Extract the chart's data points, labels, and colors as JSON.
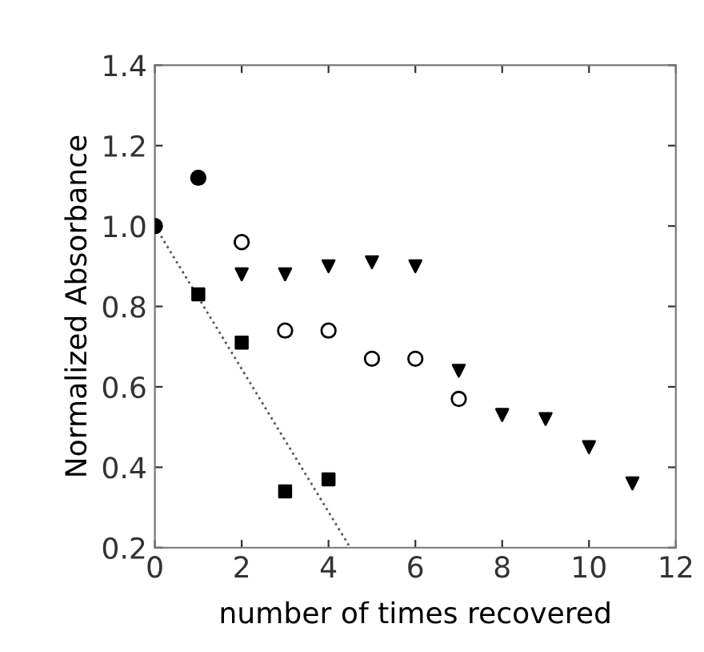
{
  "chart_data": {
    "type": "scatter",
    "xlabel": "number of times recovered",
    "ylabel": "Normalized Absorbance",
    "xlim": [
      0,
      12
    ],
    "ylim": [
      0.2,
      1.4
    ],
    "xticks": [
      0,
      2,
      4,
      6,
      8,
      10,
      12
    ],
    "yticks": [
      {
        "value": 0.2,
        "label": "0.2"
      },
      {
        "value": 0.4,
        "label": "0.4"
      },
      {
        "value": 0.6,
        "label": "0.6"
      },
      {
        "value": 0.8,
        "label": "0.8"
      },
      {
        "value": 1.0,
        "label": "1.0"
      },
      {
        "value": 1.2,
        "label": "1.2"
      },
      {
        "value": 1.4,
        "label": "1.4"
      }
    ],
    "grid": false,
    "legend": false,
    "series": [
      {
        "marker": "circle",
        "color": "#000000",
        "x": [
          0,
          1
        ],
        "values": [
          1.0,
          1.12
        ]
      },
      {
        "marker": "square",
        "color": "#000000",
        "x": [
          1,
          2,
          3,
          4
        ],
        "values": [
          0.83,
          0.71,
          0.34,
          0.37
        ]
      },
      {
        "marker": "circle",
        "color": "#ffffff",
        "x": [
          2,
          3,
          4,
          5,
          6,
          7
        ],
        "values": [
          0.96,
          0.74,
          0.74,
          0.67,
          0.67,
          0.57
        ]
      },
      {
        "marker": "triangle",
        "color": "#000000",
        "x": [
          2,
          3,
          4,
          5,
          6,
          7,
          8,
          9,
          10,
          11
        ],
        "values": [
          0.88,
          0.88,
          0.9,
          0.91,
          0.9,
          0.64,
          0.53,
          0.52,
          0.45,
          0.36
        ]
      },
      {
        "type": "line",
        "marker": "none",
        "line_style": "dotted",
        "color": "#555555",
        "x": [
          0,
          4.5
        ],
        "values": [
          1.0,
          0.2
        ]
      }
    ]
  }
}
